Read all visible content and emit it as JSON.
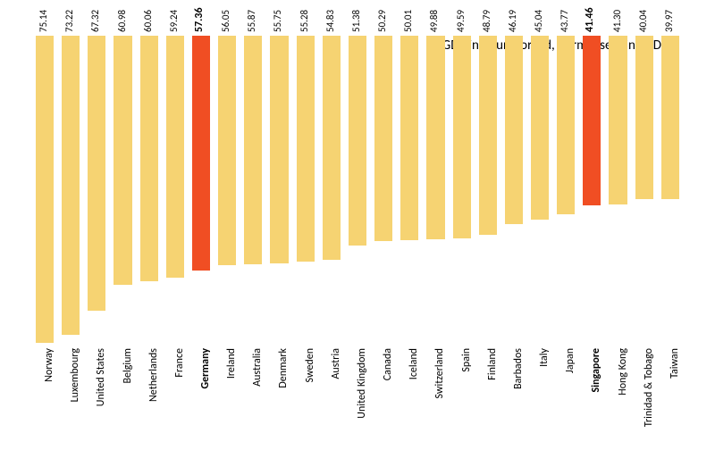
{
  "chart": {
    "type": "bar",
    "title": "GDP in hour worked, normalised, in USD",
    "title_fontsize": 15,
    "background_color": "#ffffff",
    "bar_color": "#f6d372",
    "highlight_color": "#f04e23",
    "value_fontsize": 11,
    "label_fontsize": 12,
    "ymax": 75.14,
    "bars": [
      {
        "label": "Norway",
        "value": 75.14,
        "hl": false
      },
      {
        "label": "Luxembourg",
        "value": 73.22,
        "hl": false
      },
      {
        "label": "United States",
        "value": 67.32,
        "hl": false
      },
      {
        "label": "Belgium",
        "value": 60.98,
        "hl": false
      },
      {
        "label": "Netherlands",
        "value": 60.06,
        "hl": false
      },
      {
        "label": "France",
        "value": 59.24,
        "hl": false
      },
      {
        "label": "Germany",
        "value": 57.36,
        "hl": true
      },
      {
        "label": "Ireland",
        "value": 56.05,
        "hl": false
      },
      {
        "label": "Australia",
        "value": 55.87,
        "hl": false
      },
      {
        "label": "Denmark",
        "value": 55.75,
        "hl": false
      },
      {
        "label": "Sweden",
        "value": 55.28,
        "hl": false
      },
      {
        "label": "Austria",
        "value": 54.83,
        "hl": false
      },
      {
        "label": "United Kingdom",
        "value": 51.38,
        "hl": false
      },
      {
        "label": "Canada",
        "value": 50.29,
        "hl": false
      },
      {
        "label": "Iceland",
        "value": 50.01,
        "hl": false
      },
      {
        "label": "Switzerland",
        "value": 49.88,
        "hl": false
      },
      {
        "label": "Spain",
        "value": 49.59,
        "hl": false
      },
      {
        "label": "Finland",
        "value": 48.79,
        "hl": false
      },
      {
        "label": "Barbados",
        "value": 46.19,
        "hl": false
      },
      {
        "label": "Italy",
        "value": 45.04,
        "hl": false
      },
      {
        "label": "Japan",
        "value": 43.77,
        "hl": false
      },
      {
        "label": "Singapore",
        "value": 41.46,
        "hl": true
      },
      {
        "label": "Hong Kong",
        "value": 41.3,
        "hl": false
      },
      {
        "label": "Trinidad & Tobago",
        "value": 40.04,
        "hl": false
      },
      {
        "label": "Taiwan",
        "value": 39.97,
        "hl": false
      }
    ]
  }
}
